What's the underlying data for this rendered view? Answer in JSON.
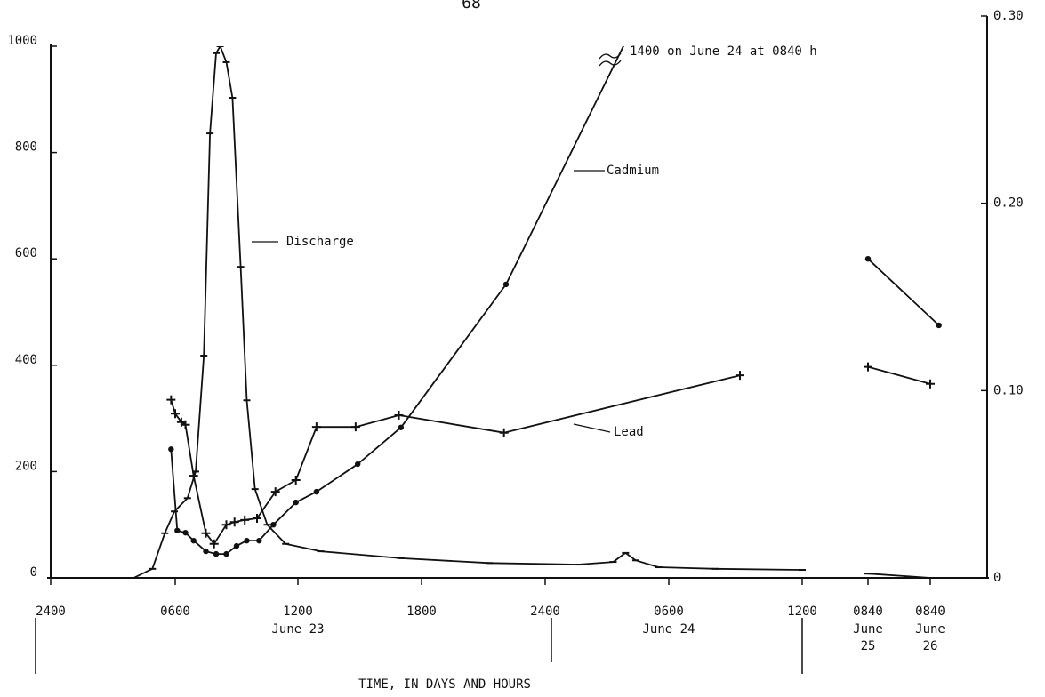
{
  "chart_data": {
    "type": "line",
    "page_number": "68",
    "xlabel": "TIME, IN DAYS AND HOURS",
    "annotation": "1400 on June 24 at 0840 h",
    "xticks": [
      {
        "value": 0,
        "label": "2400"
      },
      {
        "value": 6,
        "label": "0600"
      },
      {
        "value": 12,
        "label": "1200"
      },
      {
        "value": 18,
        "label": "1800"
      },
      {
        "value": 24,
        "label": "2400"
      },
      {
        "value": 30,
        "label": "0600"
      },
      {
        "value": 36,
        "label": "1200"
      },
      {
        "value": 56.67,
        "label": "0840"
      },
      {
        "value": 80.67,
        "label": "0840"
      }
    ],
    "date_labels": [
      {
        "text": "June 23",
        "x": 12
      },
      {
        "text": "June 24",
        "x": 30
      },
      {
        "text": "June 25",
        "x": 56.67
      },
      {
        "text": "June 26",
        "x": 80.67
      }
    ],
    "ylim": [
      0,
      1000
    ],
    "yticks": [
      0,
      200,
      400,
      600,
      800,
      1000
    ],
    "y2lim": [
      0,
      0.3
    ],
    "y2ticks": [
      0,
      {
        "value": 0.1,
        "label": "0.10"
      },
      {
        "value": 0.2,
        "label": "0.20"
      },
      {
        "value": 0.3,
        "label": "0.30"
      }
    ],
    "series": [
      {
        "name": "Discharge",
        "color": "#111111",
        "marker": "none",
        "x": [
          0,
          4.0,
          4.9,
          5.5,
          5.96,
          6.6,
          7.0,
          7.4,
          7.7,
          8.0,
          8.2,
          8.5,
          8.8,
          9.2,
          9.5,
          9.9,
          10.5,
          11.4,
          13.1,
          17.0,
          21.3,
          25.6,
          27.3,
          27.9,
          28.4,
          29.5,
          32.1,
          36.0,
          null,
          56.67,
          80.67
        ],
        "values": [
          0,
          0,
          17,
          84,
          125,
          150,
          200,
          418,
          836,
          987,
          1000,
          970,
          903,
          585,
          334,
          167,
          100,
          64,
          50,
          37,
          28,
          25,
          30,
          47,
          33,
          20,
          17,
          15,
          null,
          8,
          0
        ]
      },
      {
        "name": "Cadmium",
        "color": "#111111",
        "marker": "dot",
        "x": [
          5.8,
          6.1,
          6.5,
          6.9,
          7.5,
          8.0,
          8.5,
          9.0,
          9.5,
          10.1,
          10.8,
          11.9,
          12.9,
          14.9,
          17.0,
          22.1,
          32.67,
          null,
          56.67,
          84
        ],
        "values": [
          242,
          89,
          85,
          70,
          50,
          45,
          45,
          60,
          70,
          70,
          100,
          142,
          162,
          214,
          283,
          552,
          1400,
          null,
          600,
          475
        ]
      },
      {
        "name": "Lead",
        "color": "#111111",
        "marker": "cross",
        "x": [
          5.8,
          6.0,
          6.3,
          6.5,
          6.9,
          7.5,
          7.9,
          8.5,
          8.9,
          9.4,
          10.0,
          10.9,
          11.9,
          12.9,
          14.8,
          16.9,
          22.0,
          33.2,
          null,
          56.67,
          80.67
        ],
        "values": [
          335,
          309,
          293,
          288,
          192,
          84,
          64,
          100,
          105,
          109,
          112,
          162,
          184,
          284,
          284,
          306,
          273,
          381,
          null,
          397,
          365
        ]
      }
    ]
  }
}
